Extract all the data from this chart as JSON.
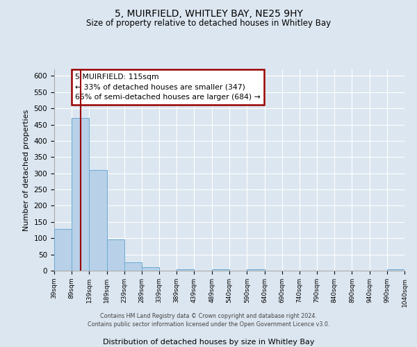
{
  "title": "5, MUIRFIELD, WHITLEY BAY, NE25 9HY",
  "subtitle": "Size of property relative to detached houses in Whitley Bay",
  "xlabel": "Distribution of detached houses by size in Whitley Bay",
  "ylabel": "Number of detached properties",
  "bin_edges": [
    39,
    89,
    139,
    189,
    239,
    289,
    339,
    389,
    439,
    489,
    540,
    590,
    640,
    690,
    740,
    790,
    840,
    890,
    940,
    990,
    1040
  ],
  "counts": [
    128,
    470,
    310,
    97,
    25,
    10,
    0,
    5,
    0,
    5,
    0,
    5,
    0,
    0,
    0,
    0,
    0,
    0,
    0,
    5
  ],
  "bar_color": "#b8d0e8",
  "bar_edge_color": "#6aaad4",
  "property_line_x": 115,
  "property_line_color": "#990000",
  "ylim": [
    0,
    620
  ],
  "yticks": [
    0,
    50,
    100,
    150,
    200,
    250,
    300,
    350,
    400,
    450,
    500,
    550,
    600
  ],
  "annotation_box_text": "5 MUIRFIELD: 115sqm\n← 33% of detached houses are smaller (347)\n66% of semi-detached houses are larger (684) →",
  "annotation_box_color": "#990000",
  "annotation_box_bg": "#ffffff",
  "background_color": "#dce6f0",
  "grid_color": "#ffffff",
  "footer_line1": "Contains HM Land Registry data © Crown copyright and database right 2024.",
  "footer_line2": "Contains public sector information licensed under the Open Government Licence v3.0."
}
